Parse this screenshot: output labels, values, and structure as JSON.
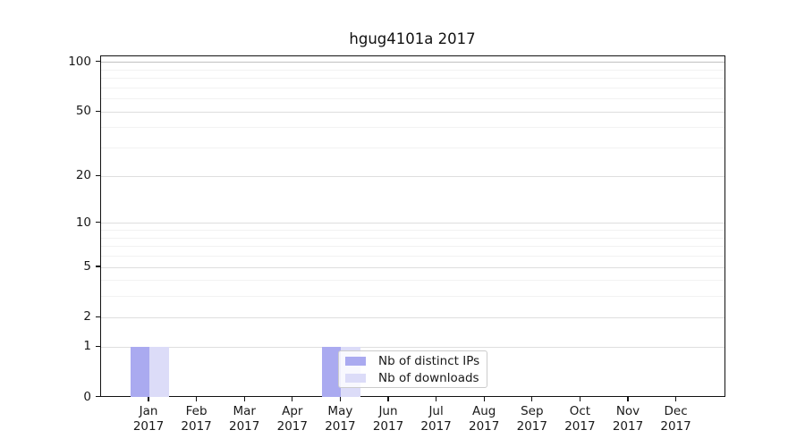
{
  "title": "hgug4101a 2017",
  "legend": {
    "items": [
      {
        "label": "Nb of distinct IPs",
        "color": "#aaaaf0"
      },
      {
        "label": "Nb of downloads",
        "color": "#dcdcf8"
      }
    ]
  },
  "y_axis": {
    "tick_labels": [
      "100",
      "50",
      "20",
      "10",
      "5",
      "2",
      "1",
      "0"
    ]
  },
  "x_axis": {
    "year": "2017",
    "months": [
      "Jan",
      "Feb",
      "Mar",
      "Apr",
      "May",
      "Jun",
      "Jul",
      "Aug",
      "Sep",
      "Oct",
      "Nov",
      "Dec"
    ]
  },
  "chart_data": {
    "type": "bar",
    "title": "hgug4101a 2017",
    "categories": [
      "Jan 2017",
      "Feb 2017",
      "Mar 2017",
      "Apr 2017",
      "May 2017",
      "Jun 2017",
      "Jul 2017",
      "Aug 2017",
      "Sep 2017",
      "Oct 2017",
      "Nov 2017",
      "Dec 2017"
    ],
    "series": [
      {
        "name": "Nb of distinct IPs",
        "color": "#aaaaf0",
        "values": [
          1,
          0,
          0,
          0,
          1,
          0,
          0,
          0,
          0,
          0,
          0,
          0
        ]
      },
      {
        "name": "Nb of downloads",
        "color": "#dcdcf8",
        "values": [
          1,
          0,
          0,
          0,
          1,
          0,
          0,
          0,
          0,
          0,
          0,
          0
        ]
      }
    ],
    "yscale": "log1p",
    "ylim": [
      0,
      110
    ],
    "yticks": [
      0,
      1,
      2,
      5,
      10,
      20,
      50,
      100
    ],
    "yticks_minor": [
      3,
      4,
      6,
      7,
      8,
      9,
      30,
      40,
      60,
      70,
      80,
      90
    ],
    "grid": true,
    "legend_position": "lower center inside axes"
  }
}
